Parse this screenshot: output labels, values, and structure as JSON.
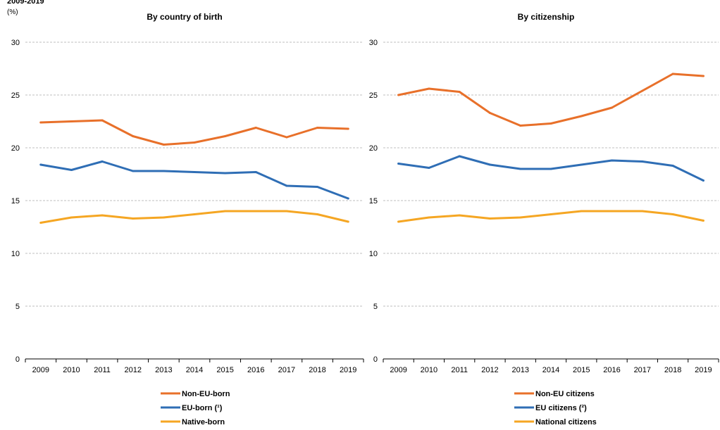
{
  "header": {
    "supertitle": "2009-2019",
    "unit": "(%)"
  },
  "chart_data": [
    {
      "type": "line",
      "title": "By country of birth",
      "unit": "(%)",
      "x": [
        "2009",
        "2010",
        "2011",
        "2012",
        "2013",
        "2014",
        "2015",
        "2016",
        "2017",
        "2018",
        "2019"
      ],
      "ylim": [
        0,
        30
      ],
      "yticks": [
        0,
        5,
        10,
        15,
        20,
        25,
        30
      ],
      "grid": true,
      "legend_position": "bottom",
      "series": [
        {
          "name": "Non-EU-born",
          "color": "#e8702a",
          "values": [
            22.4,
            22.5,
            22.6,
            21.1,
            20.3,
            20.5,
            21.1,
            21.9,
            21.0,
            21.9,
            21.8
          ]
        },
        {
          "name": "EU-born (¹)",
          "color": "#2f6eb5",
          "values": [
            18.4,
            17.9,
            18.7,
            17.8,
            17.8,
            17.7,
            17.6,
            17.7,
            16.4,
            16.3,
            15.2
          ]
        },
        {
          "name": "Native-born",
          "color": "#f5a623",
          "values": [
            12.9,
            13.4,
            13.6,
            13.3,
            13.4,
            13.7,
            14.0,
            14.0,
            14.0,
            13.7,
            13.0
          ]
        }
      ]
    },
    {
      "type": "line",
      "title": "By citizenship",
      "x": [
        "2009",
        "2010",
        "2011",
        "2012",
        "2013",
        "2014",
        "2015",
        "2016",
        "2017",
        "2018",
        "2019"
      ],
      "ylim": [
        0,
        30
      ],
      "yticks": [
        0,
        5,
        10,
        15,
        20,
        25,
        30
      ],
      "grid": true,
      "legend_position": "bottom",
      "series": [
        {
          "name": "Non-EU citizens",
          "color": "#e8702a",
          "values": [
            25.0,
            25.6,
            25.3,
            23.3,
            22.1,
            22.3,
            23.0,
            23.8,
            25.4,
            27.0,
            26.8
          ]
        },
        {
          "name": "EU citizens (²)",
          "color": "#2f6eb5",
          "values": [
            18.5,
            18.1,
            19.2,
            18.4,
            18.0,
            18.0,
            18.4,
            18.8,
            18.7,
            18.3,
            16.9
          ]
        },
        {
          "name": "National citizens",
          "color": "#f5a623",
          "values": [
            13.0,
            13.4,
            13.6,
            13.3,
            13.4,
            13.7,
            14.0,
            14.0,
            14.0,
            13.7,
            13.1
          ]
        }
      ]
    }
  ]
}
